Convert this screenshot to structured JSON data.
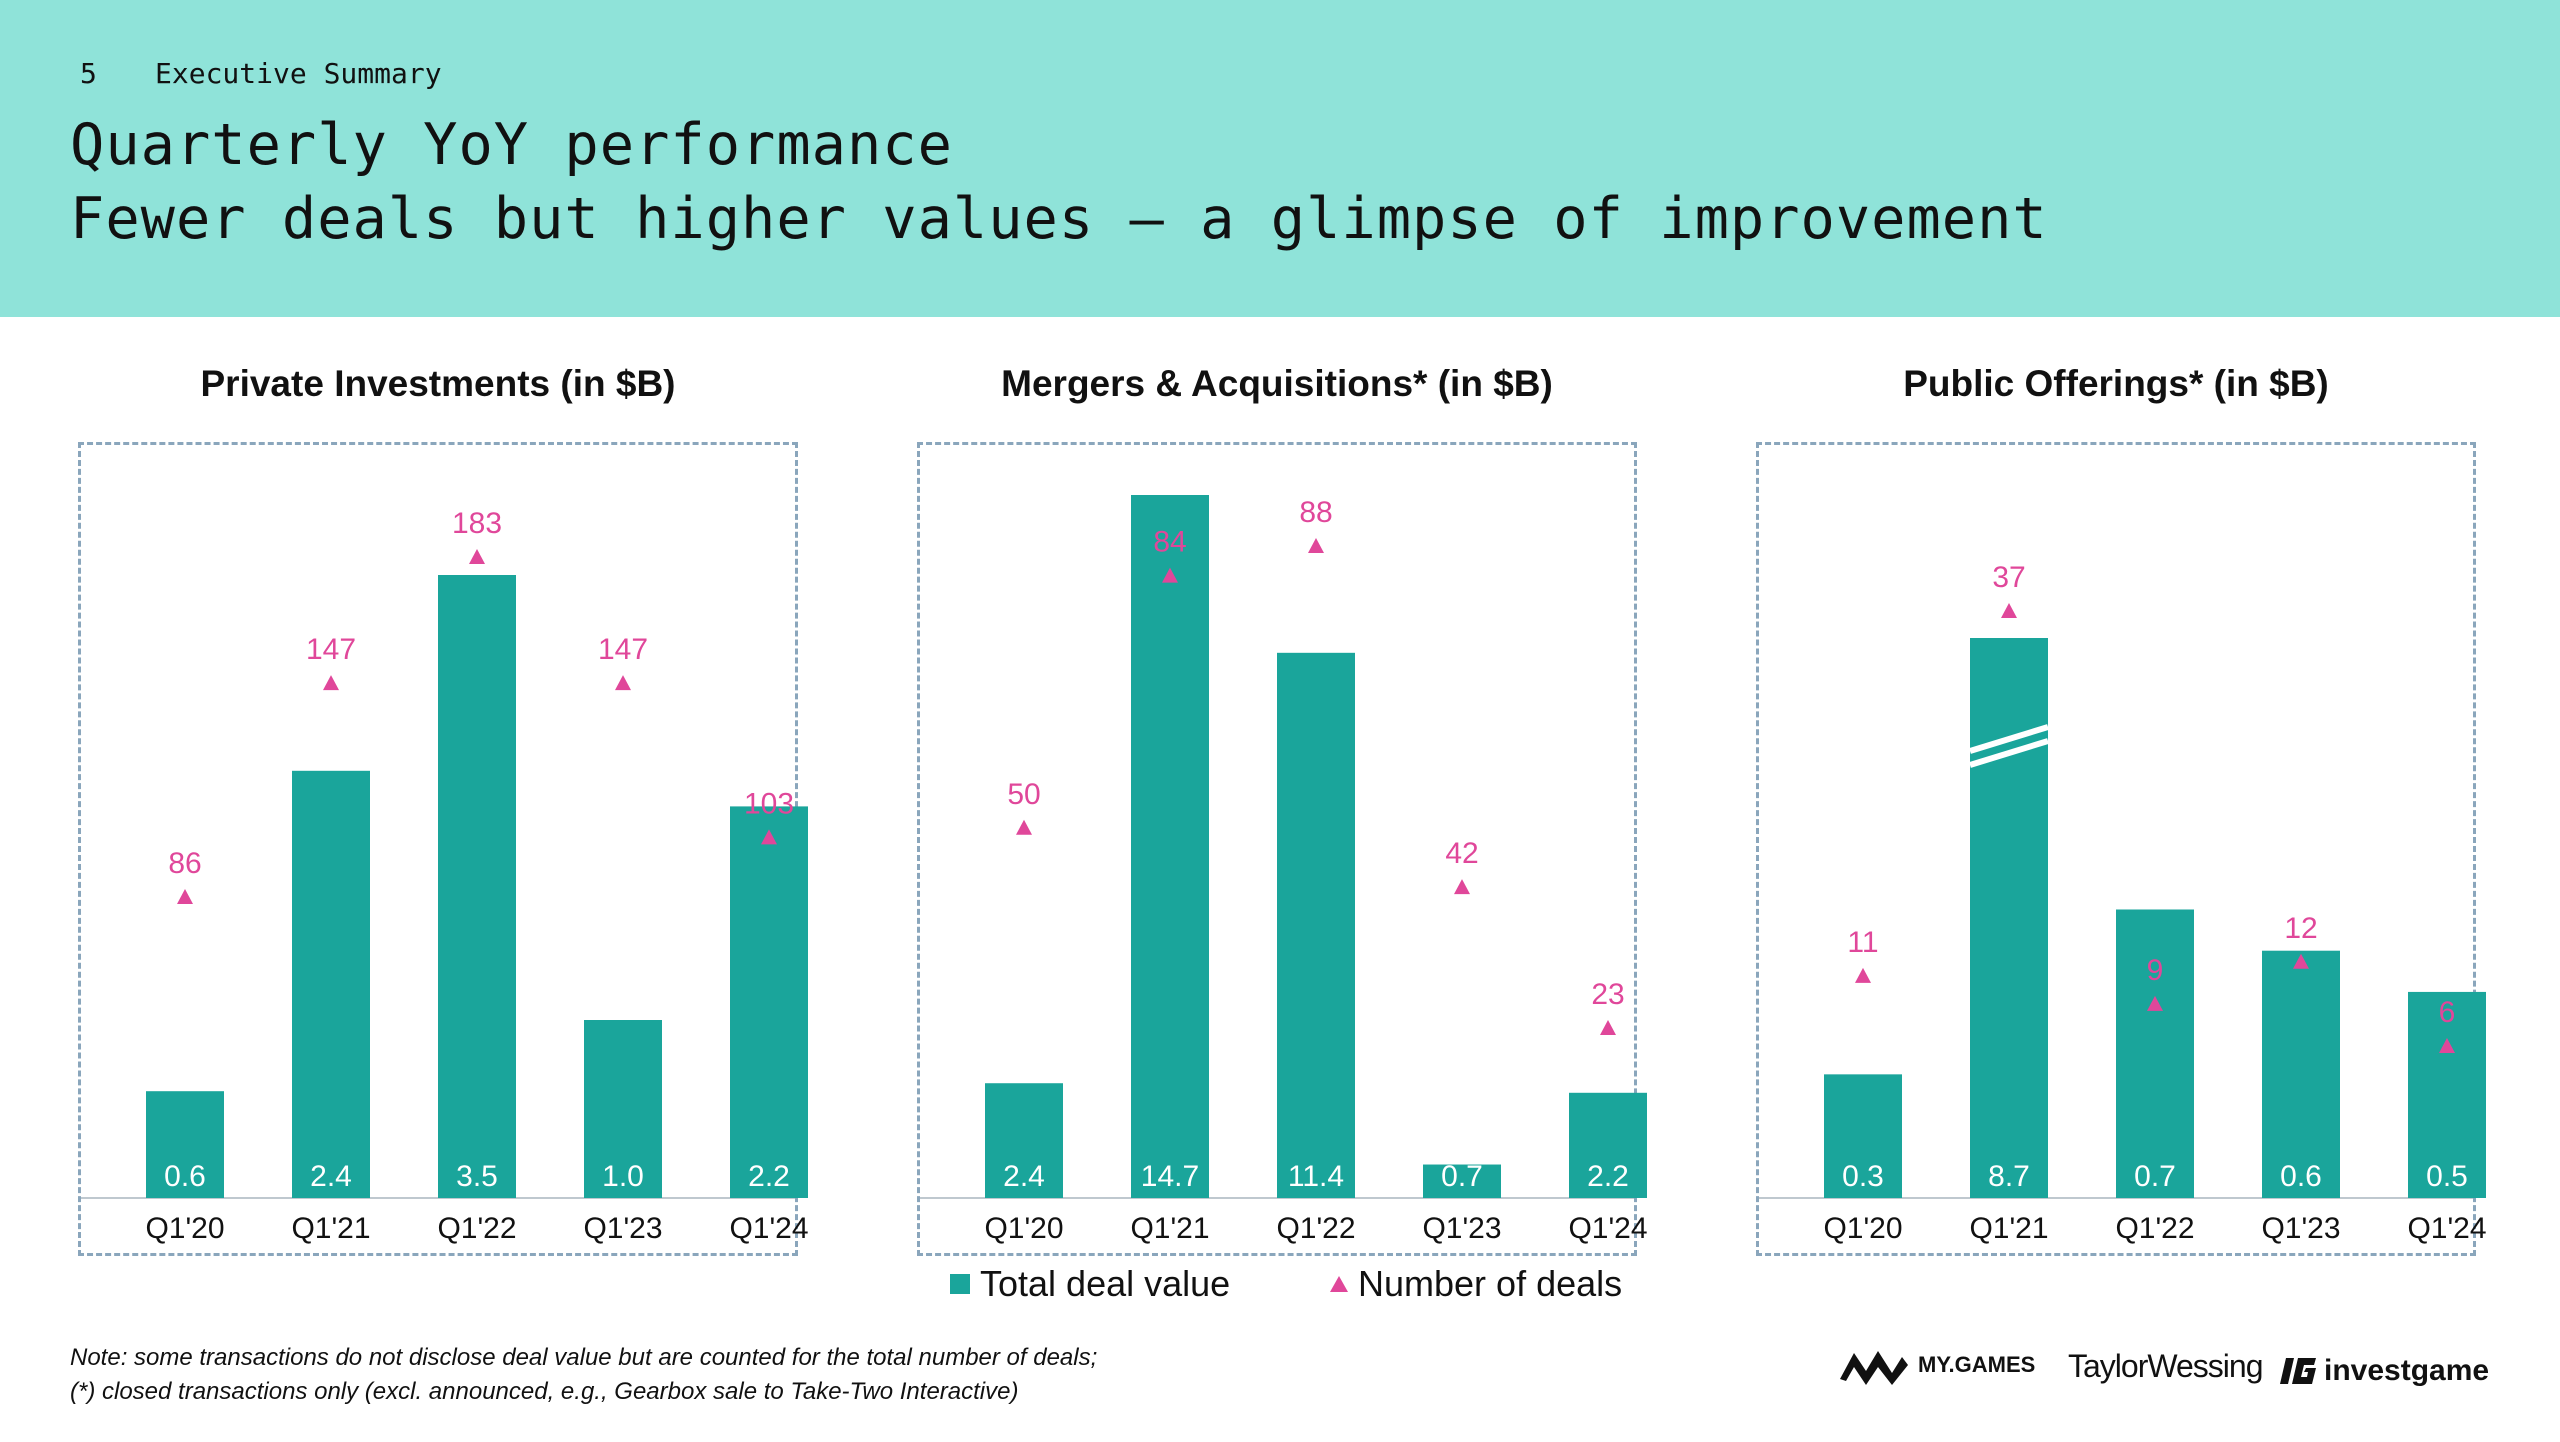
{
  "header": {
    "page_number": "5",
    "section": "Executive Summary",
    "title_line1": "Quarterly YoY performance",
    "title_line2": "Fewer deals but higher values — a glimpse of improvement"
  },
  "colors": {
    "header_bg": "#8fe3d9",
    "bar": "#1aa59b",
    "deal_marker": "#e0479a",
    "frame": "#8aa6bc"
  },
  "legend": {
    "bar_label": "Total deal value",
    "marker_label": "Number of deals"
  },
  "notes": {
    "line1": "Note: some transactions do not disclose deal value but are counted for the total number of deals;",
    "line2": "(*) closed transactions only (excl. announced, e.g., Gearbox sale to Take-Two Interactive)"
  },
  "logos": {
    "mygames": "MY.GAMES",
    "taylorwessing": "TaylorWessing",
    "investgame": "investgame"
  },
  "chart_data": [
    {
      "type": "bar",
      "title": "Private Investments (in $B)",
      "categories": [
        "Q1'20",
        "Q1'21",
        "Q1'22",
        "Q1'23",
        "Q1'24"
      ],
      "series": [
        {
          "name": "Total deal value",
          "type": "bar",
          "values": [
            0.6,
            2.4,
            3.5,
            1.0,
            2.2
          ]
        },
        {
          "name": "Number of deals",
          "type": "marker",
          "values": [
            86,
            147,
            183,
            147,
            103
          ]
        }
      ]
    },
    {
      "type": "bar",
      "title": "Mergers & Acquisitions* (in $B)",
      "categories": [
        "Q1'20",
        "Q1'21",
        "Q1'22",
        "Q1'23",
        "Q1'24"
      ],
      "series": [
        {
          "name": "Total deal value",
          "type": "bar",
          "values": [
            2.4,
            14.7,
            11.4,
            0.7,
            2.2
          ]
        },
        {
          "name": "Number of deals",
          "type": "marker",
          "values": [
            50,
            84,
            88,
            42,
            23
          ]
        }
      ]
    },
    {
      "type": "bar",
      "title": "Public Offerings* (in $B)",
      "categories": [
        "Q1'20",
        "Q1'21",
        "Q1'22",
        "Q1'23",
        "Q1'24"
      ],
      "axis_break": "Q1'21",
      "series": [
        {
          "name": "Total deal value",
          "type": "bar",
          "values": [
            0.3,
            8.7,
            0.7,
            0.6,
            0.5
          ]
        },
        {
          "name": "Number of deals",
          "type": "marker",
          "values": [
            11,
            37,
            9,
            12,
            6
          ]
        }
      ]
    }
  ]
}
